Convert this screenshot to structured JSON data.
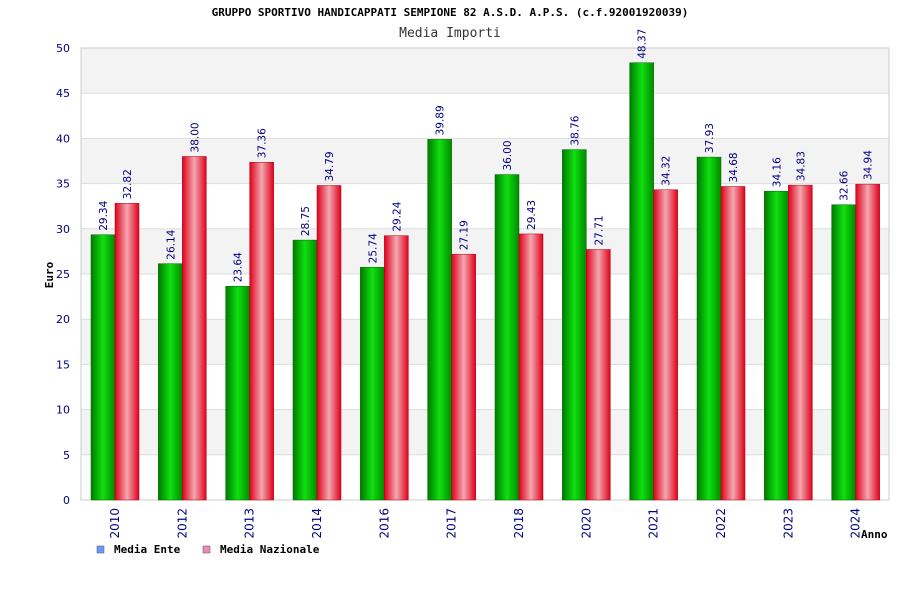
{
  "chart_data": {
    "type": "bar",
    "title": "GRUPPO SPORTIVO HANDICAPPATI SEMPIONE 82 A.S.D. A.P.S. (c.f.92001920039)",
    "subtitle": "Media Importi",
    "xlabel": "Anno",
    "ylabel": "Euro",
    "ylim": [
      0,
      50
    ],
    "yticks": [
      0,
      5,
      10,
      15,
      20,
      25,
      30,
      35,
      40,
      45,
      50
    ],
    "grid": true,
    "legend_position": "bottom-left",
    "categories": [
      "2010",
      "2012",
      "2013",
      "2014",
      "2016",
      "2017",
      "2018",
      "2020",
      "2021",
      "2022",
      "2023",
      "2024"
    ],
    "series": [
      {
        "name": "Media Ente",
        "color": "#00b400",
        "legend_color": "#6699ff",
        "values": [
          29.34,
          26.14,
          23.64,
          28.75,
          25.74,
          39.89,
          36.0,
          38.76,
          48.37,
          37.93,
          34.16,
          32.66
        ],
        "labels": [
          "29.34",
          "26.14",
          "23.64",
          "28.75",
          "25.74",
          "39.89",
          "36.00",
          "38.76",
          "48.37",
          "37.93",
          "34.16",
          "32.66"
        ]
      },
      {
        "name": "Media Nazionale",
        "color": "#e8001c",
        "legend_color": "#ee88bb",
        "values": [
          32.82,
          38.0,
          37.36,
          34.79,
          29.24,
          27.19,
          29.43,
          27.71,
          34.32,
          34.68,
          34.83,
          34.94
        ],
        "labels": [
          "32.82",
          "38.00",
          "37.36",
          "34.79",
          "29.24",
          "27.19",
          "29.43",
          "27.71",
          "34.32",
          "34.68",
          "34.83",
          "34.94"
        ]
      }
    ]
  }
}
